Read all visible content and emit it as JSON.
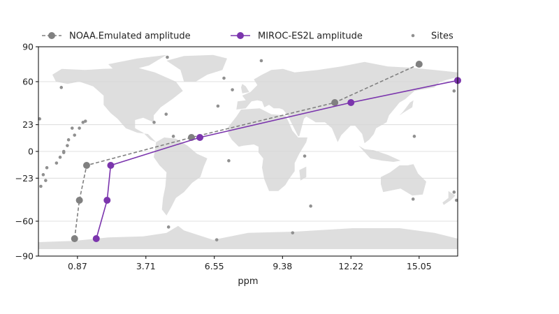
{
  "chart_data": {
    "type": "line",
    "xlabel": "ppm",
    "ylabel": "",
    "xlim": [
      -0.75,
      16.65
    ],
    "ylim": [
      -90,
      90
    ],
    "xticks": [
      0.87,
      3.71,
      6.55,
      9.38,
      12.22,
      15.05
    ],
    "xtick_labels": [
      "0.87",
      "3.71",
      "6.55",
      "9.38",
      "12.22",
      "15.05"
    ],
    "yticks": [
      90,
      60,
      23,
      0,
      -23,
      -60,
      -90
    ],
    "ytick_labels": [
      "90",
      "60",
      "23",
      "0",
      "−23",
      "−60",
      "−90"
    ],
    "grid": "horizontal",
    "legend_position": "top",
    "background": "world-map",
    "series": [
      {
        "name": "NOAA.Emulated amplitude",
        "style": "dashed",
        "color": "#808080",
        "x": [
          0.75,
          0.95,
          1.25,
          5.6,
          11.55,
          15.05
        ],
        "y": [
          -75,
          -42,
          -12,
          12,
          42,
          75
        ]
      },
      {
        "name": "MIROC-ES2L amplitude",
        "style": "solid",
        "color": "#7b35ad",
        "x": [
          1.65,
          2.1,
          2.25,
          5.95,
          12.22,
          16.65
        ],
        "y": [
          -75,
          -42,
          -12,
          12,
          42,
          61
        ]
      },
      {
        "name": "Sites",
        "style": "scatter",
        "color": "#909090",
        "x": [
          -0.7,
          -0.65,
          -0.55,
          -0.45,
          -0.4,
          0.0,
          0.15,
          0.3,
          0.45,
          0.5,
          0.3,
          0.65,
          0.75,
          0.95,
          1.1,
          1.2,
          0.2,
          4.05,
          4.55,
          4.65,
          4.85,
          6.65,
          6.95,
          7.15,
          7.3,
          8.5,
          9.8,
          10.3,
          10.55,
          14.85,
          14.8,
          16.5,
          16.6,
          16.5,
          6.7,
          4.6
        ],
        "y": [
          28,
          -30,
          -20,
          -25,
          -14,
          -10,
          -5,
          0,
          5,
          10,
          -1,
          20,
          14,
          20,
          25,
          26,
          55,
          25,
          32,
          -65,
          13,
          -76,
          63,
          -8,
          53,
          78,
          -70,
          -4,
          -47,
          13,
          -41,
          52,
          -42,
          -35,
          39,
          81
        ]
      }
    ]
  }
}
